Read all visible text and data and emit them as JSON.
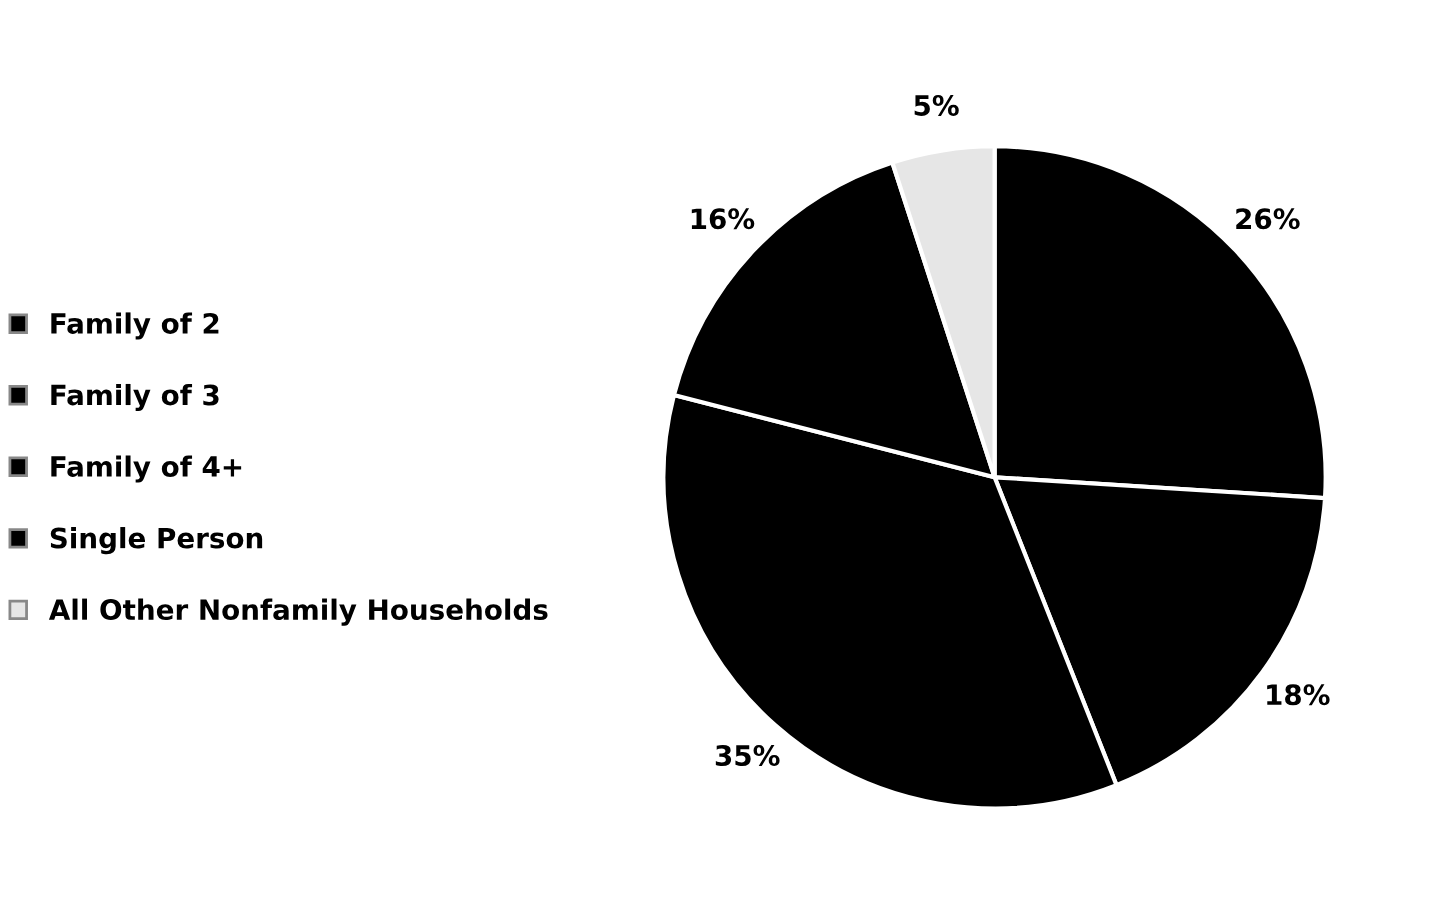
{
  "chart_data": {
    "type": "pie",
    "categories": [
      "Family of 2",
      "Family of 3",
      "Family of 4+",
      "Single Person",
      "All Other Nonfamily Households"
    ],
    "values": [
      26,
      18,
      35,
      16,
      5
    ],
    "colors": [
      "#000000",
      "#000000",
      "#000000",
      "#000000",
      "#e6e6e6"
    ],
    "value_labels": [
      "26%",
      "18%",
      "35%",
      "16%",
      "5%"
    ],
    "legend": "left"
  }
}
